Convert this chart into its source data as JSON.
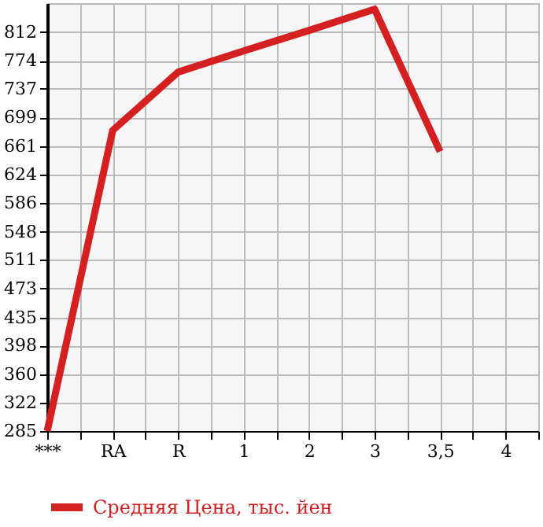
{
  "chart_data": {
    "type": "line",
    "categories": [
      "***",
      "RA",
      "R",
      "1",
      "2",
      "3",
      "3,5",
      "4"
    ],
    "series": [
      {
        "name": "Средняя Цена, тыс. йен",
        "color": "#d42020",
        "values": [
          285,
          682,
          759,
          787,
          814,
          842,
          654,
          null
        ]
      }
    ],
    "ylim": [
      285,
      850
    ],
    "yticks": [
      285,
      322,
      360,
      398,
      435,
      473,
      511,
      548,
      586,
      624,
      661,
      699,
      737,
      774,
      812
    ],
    "grid": true,
    "legend": "bottom",
    "marker": "none",
    "line_style": "solid"
  }
}
